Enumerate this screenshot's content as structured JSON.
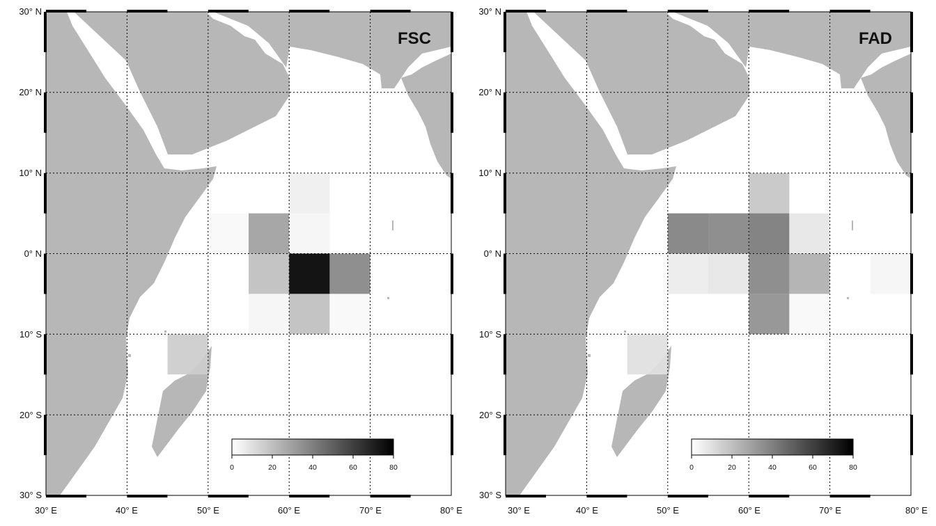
{
  "maps": [
    {
      "label": "FSC",
      "cells": [
        {
          "lon": 60,
          "lat": 5,
          "value": 5
        },
        {
          "lon": 50,
          "lat": 0,
          "value": 2
        },
        {
          "lon": 55,
          "lat": 0,
          "value": 30
        },
        {
          "lon": 60,
          "lat": 0,
          "value": 3
        },
        {
          "lon": 55,
          "lat": -5,
          "value": 20
        },
        {
          "lon": 60,
          "lat": -5,
          "value": 80
        },
        {
          "lon": 65,
          "lat": -5,
          "value": 38
        },
        {
          "lon": 55,
          "lat": -10,
          "value": 3
        },
        {
          "lon": 60,
          "lat": -10,
          "value": 20
        },
        {
          "lon": 65,
          "lat": -10,
          "value": 2
        },
        {
          "lon": 45,
          "lat": -15,
          "value": 16
        }
      ]
    },
    {
      "label": "FAD",
      "cells": [
        {
          "lon": 60,
          "lat": 5,
          "value": 18
        },
        {
          "lon": 50,
          "lat": 0,
          "value": 40
        },
        {
          "lon": 55,
          "lat": 0,
          "value": 38
        },
        {
          "lon": 60,
          "lat": 0,
          "value": 42
        },
        {
          "lon": 65,
          "lat": 0,
          "value": 8
        },
        {
          "lon": 50,
          "lat": -5,
          "value": 6
        },
        {
          "lon": 55,
          "lat": -5,
          "value": 8
        },
        {
          "lon": 60,
          "lat": -5,
          "value": 38
        },
        {
          "lon": 65,
          "lat": -5,
          "value": 25
        },
        {
          "lon": 75,
          "lat": -5,
          "value": 3
        },
        {
          "lon": 60,
          "lat": -10,
          "value": 35
        },
        {
          "lon": 65,
          "lat": -10,
          "value": 2
        },
        {
          "lon": 45,
          "lat": -15,
          "value": 10
        }
      ]
    }
  ],
  "lon_ticks": [
    "30° E",
    "40° E",
    "50° E",
    "60° E",
    "70° E",
    "80° E"
  ],
  "lat_ticks": [
    "30° N",
    "20° N",
    "10° N",
    "0° N",
    "10° S",
    "20° S",
    "30° S"
  ],
  "colorbar": {
    "ticks": [
      "0",
      "20",
      "40",
      "60",
      "80"
    ],
    "min": 0,
    "max": 80
  },
  "colors": {
    "land": "#b7b7b7",
    "ocean": "#ffffff",
    "scale_low": "#ffffff",
    "scale_high": "#000000"
  }
}
